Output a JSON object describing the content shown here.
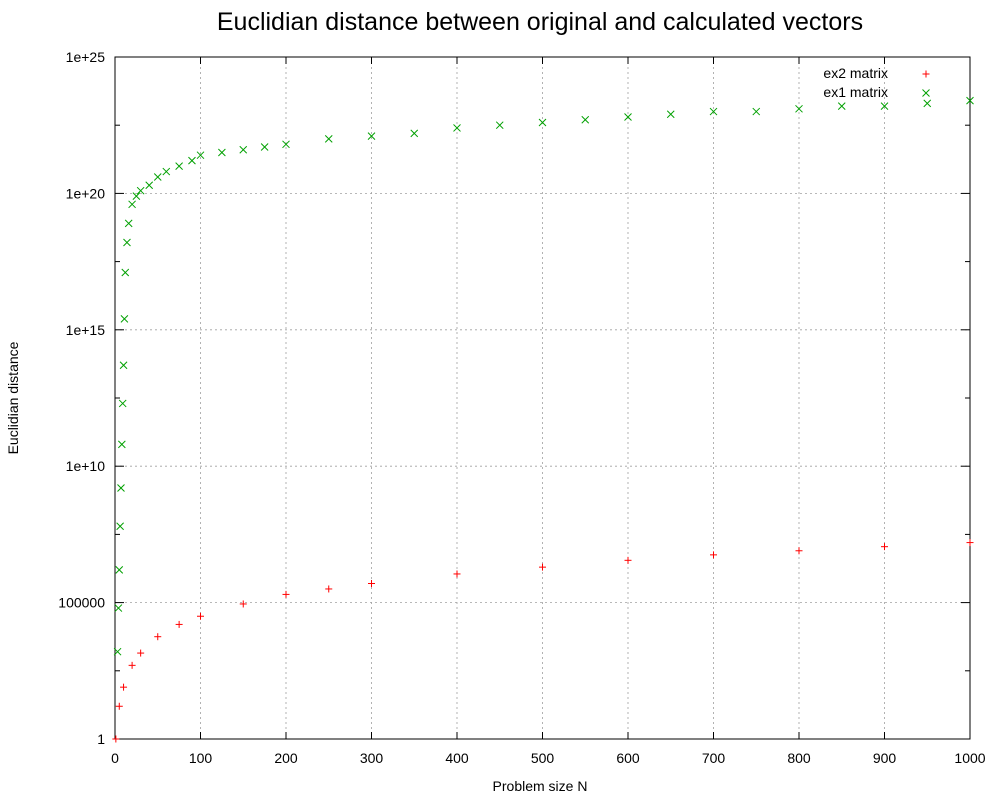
{
  "chart_data": {
    "type": "scatter",
    "title": "Euclidian distance between original and calculated vectors",
    "xlabel": "Problem size N",
    "ylabel": "Euclidian distance",
    "xlim": [
      0,
      1000
    ],
    "ylim_log10": [
      0,
      25
    ],
    "y_scale": "log",
    "grid": true,
    "legend_position": "top-right",
    "x_ticks": [
      0,
      100,
      200,
      300,
      400,
      500,
      600,
      700,
      800,
      900,
      1000
    ],
    "x_tick_labels": [
      "0",
      "100",
      "200",
      "300",
      "400",
      "500",
      "600",
      "700",
      "800",
      "900",
      "1000"
    ],
    "y_ticks_log10": [
      0,
      5,
      10,
      15,
      20,
      25
    ],
    "y_tick_labels": [
      "1",
      "100000",
      "1e+10",
      "1e+15",
      "1e+20",
      "1e+25"
    ],
    "series": [
      {
        "name": "ex2 matrix",
        "color": "#ff0000",
        "marker": "plus",
        "x": [
          1,
          5,
          10,
          20,
          30,
          50,
          75,
          100,
          150,
          200,
          250,
          300,
          400,
          500,
          600,
          700,
          800,
          900,
          1000
        ],
        "log10_y": [
          0.0,
          1.2,
          1.9,
          2.7,
          3.15,
          3.75,
          4.2,
          4.5,
          4.95,
          5.3,
          5.5,
          5.7,
          6.05,
          6.3,
          6.55,
          6.75,
          6.9,
          7.05,
          7.2
        ]
      },
      {
        "name": "ex1 matrix",
        "color": "#00a000",
        "marker": "x",
        "x": [
          3,
          4,
          5,
          6,
          7,
          8,
          9,
          10,
          11,
          12,
          14,
          16,
          20,
          25,
          30,
          40,
          50,
          60,
          75,
          90,
          100,
          125,
          150,
          175,
          200,
          250,
          300,
          350,
          400,
          450,
          500,
          550,
          600,
          650,
          700,
          750,
          800,
          850,
          900,
          950,
          1000
        ],
        "log10_y": [
          3.2,
          4.8,
          6.2,
          7.8,
          9.2,
          10.8,
          12.3,
          13.7,
          15.4,
          17.1,
          18.2,
          18.9,
          19.6,
          19.9,
          20.1,
          20.3,
          20.6,
          20.8,
          21.0,
          21.2,
          21.4,
          21.5,
          21.6,
          21.7,
          21.8,
          22.0,
          22.1,
          22.2,
          22.4,
          22.5,
          22.6,
          22.7,
          22.8,
          22.9,
          23.0,
          23.0,
          23.1,
          23.2,
          23.2,
          23.3,
          23.4
        ]
      }
    ]
  }
}
